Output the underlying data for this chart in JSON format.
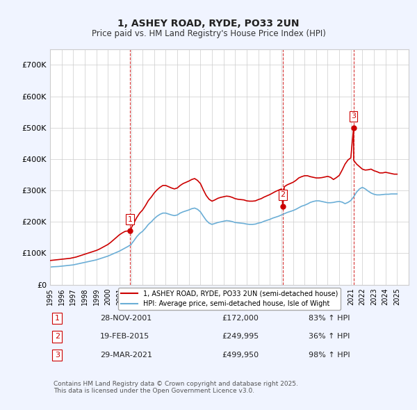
{
  "title": "1, ASHEY ROAD, RYDE, PO33 2UN",
  "subtitle": "Price paid vs. HM Land Registry's House Price Index (HPI)",
  "bg_color": "#f0f4ff",
  "plot_bg_color": "#ffffff",
  "grid_color": "#cccccc",
  "hpi_color": "#6baed6",
  "sale_color": "#cc0000",
  "vline_color": "#cc0000",
  "vline_style": "--",
  "sales": [
    {
      "date_num": 2001.91,
      "price": 172000,
      "label": "1"
    },
    {
      "date_num": 2015.13,
      "price": 249995,
      "label": "2"
    },
    {
      "date_num": 2021.24,
      "price": 499950,
      "label": "3"
    }
  ],
  "xlim": [
    1995,
    2026
  ],
  "ylim": [
    0,
    750000
  ],
  "yticks": [
    0,
    100000,
    200000,
    300000,
    400000,
    500000,
    600000,
    700000
  ],
  "ytick_labels": [
    "£0",
    "£100K",
    "£200K",
    "£300K",
    "£400K",
    "£500K",
    "£600K",
    "£700K"
  ],
  "legend_sale_label": "1, ASHEY ROAD, RYDE, PO33 2UN (semi-detached house)",
  "legend_hpi_label": "HPI: Average price, semi-detached house, Isle of Wight",
  "footer_lines": [
    "Contains HM Land Registry data © Crown copyright and database right 2025.",
    "This data is licensed under the Open Government Licence v3.0."
  ],
  "table_rows": [
    {
      "num": "1",
      "date": "28-NOV-2001",
      "price": "£172,000",
      "change": "83% ↑ HPI"
    },
    {
      "num": "2",
      "date": "19-FEB-2015",
      "price": "£249,995",
      "change": "36% ↑ HPI"
    },
    {
      "num": "3",
      "date": "29-MAR-2021",
      "price": "£499,950",
      "change": "98% ↑ HPI"
    }
  ],
  "hpi_data_x": [
    1995.0,
    1995.25,
    1995.5,
    1995.75,
    1996.0,
    1996.25,
    1996.5,
    1996.75,
    1997.0,
    1997.25,
    1997.5,
    1997.75,
    1998.0,
    1998.25,
    1998.5,
    1998.75,
    1999.0,
    1999.25,
    1999.5,
    1999.75,
    2000.0,
    2000.25,
    2000.5,
    2000.75,
    2001.0,
    2001.25,
    2001.5,
    2001.75,
    2002.0,
    2002.25,
    2002.5,
    2002.75,
    2003.0,
    2003.25,
    2003.5,
    2003.75,
    2004.0,
    2004.25,
    2004.5,
    2004.75,
    2005.0,
    2005.25,
    2005.5,
    2005.75,
    2006.0,
    2006.25,
    2006.5,
    2006.75,
    2007.0,
    2007.25,
    2007.5,
    2007.75,
    2008.0,
    2008.25,
    2008.5,
    2008.75,
    2009.0,
    2009.25,
    2009.5,
    2009.75,
    2010.0,
    2010.25,
    2010.5,
    2010.75,
    2011.0,
    2011.25,
    2011.5,
    2011.75,
    2012.0,
    2012.25,
    2012.5,
    2012.75,
    2013.0,
    2013.25,
    2013.5,
    2013.75,
    2014.0,
    2014.25,
    2014.5,
    2014.75,
    2015.0,
    2015.25,
    2015.5,
    2015.75,
    2016.0,
    2016.25,
    2016.5,
    2016.75,
    2017.0,
    2017.25,
    2017.5,
    2017.75,
    2018.0,
    2018.25,
    2018.5,
    2018.75,
    2019.0,
    2019.25,
    2019.5,
    2019.75,
    2020.0,
    2020.25,
    2020.5,
    2020.75,
    2021.0,
    2021.25,
    2021.5,
    2021.75,
    2022.0,
    2022.25,
    2022.5,
    2022.75,
    2023.0,
    2023.25,
    2023.5,
    2023.75,
    2024.0,
    2024.25,
    2024.5,
    2024.75,
    2025.0
  ],
  "hpi_data_y": [
    56000,
    57000,
    57500,
    58000,
    59000,
    60000,
    61000,
    62000,
    63000,
    65000,
    67000,
    69000,
    71000,
    73000,
    75000,
    77000,
    79000,
    82000,
    85000,
    88000,
    91000,
    95000,
    99000,
    103000,
    107000,
    112000,
    117000,
    122000,
    128000,
    140000,
    153000,
    163000,
    170000,
    180000,
    192000,
    200000,
    210000,
    218000,
    224000,
    228000,
    228000,
    225000,
    222000,
    220000,
    222000,
    228000,
    232000,
    235000,
    238000,
    242000,
    244000,
    240000,
    232000,
    218000,
    205000,
    196000,
    192000,
    195000,
    198000,
    200000,
    202000,
    204000,
    203000,
    201000,
    198000,
    197000,
    196000,
    195000,
    193000,
    192000,
    192000,
    193000,
    196000,
    198000,
    202000,
    205000,
    208000,
    212000,
    215000,
    218000,
    222000,
    226000,
    230000,
    233000,
    236000,
    240000,
    245000,
    250000,
    253000,
    257000,
    262000,
    265000,
    267000,
    267000,
    265000,
    263000,
    261000,
    261000,
    262000,
    264000,
    265000,
    263000,
    258000,
    262000,
    268000,
    280000,
    295000,
    305000,
    310000,
    305000,
    298000,
    292000,
    288000,
    286000,
    286000,
    287000,
    288000,
    288000,
    289000,
    289000,
    289000
  ],
  "sale_data_x": [
    1995.0,
    1995.25,
    1995.5,
    1995.75,
    1996.0,
    1996.25,
    1996.5,
    1996.75,
    1997.0,
    1997.25,
    1997.5,
    1997.75,
    1998.0,
    1998.25,
    1998.5,
    1998.75,
    1999.0,
    1999.25,
    1999.5,
    1999.75,
    2000.0,
    2000.25,
    2000.5,
    2000.75,
    2001.0,
    2001.25,
    2001.5,
    2001.75,
    2001.91,
    2002.0,
    2002.25,
    2002.5,
    2002.75,
    2003.0,
    2003.25,
    2003.5,
    2003.75,
    2004.0,
    2004.25,
    2004.5,
    2004.75,
    2005.0,
    2005.25,
    2005.5,
    2005.75,
    2006.0,
    2006.25,
    2006.5,
    2006.75,
    2007.0,
    2007.25,
    2007.5,
    2007.75,
    2008.0,
    2008.25,
    2008.5,
    2008.75,
    2009.0,
    2009.25,
    2009.5,
    2009.75,
    2010.0,
    2010.25,
    2010.5,
    2010.75,
    2011.0,
    2011.25,
    2011.5,
    2011.75,
    2012.0,
    2012.25,
    2012.5,
    2012.75,
    2013.0,
    2013.25,
    2013.5,
    2013.75,
    2014.0,
    2014.25,
    2014.5,
    2014.75,
    2015.0,
    2015.13,
    2015.25,
    2015.5,
    2015.75,
    2016.0,
    2016.25,
    2016.5,
    2016.75,
    2017.0,
    2017.25,
    2017.5,
    2017.75,
    2018.0,
    2018.25,
    2018.5,
    2018.75,
    2019.0,
    2019.25,
    2019.5,
    2019.75,
    2020.0,
    2020.25,
    2020.5,
    2020.75,
    2021.0,
    2021.24,
    2021.25,
    2021.5,
    2021.75,
    2022.0,
    2022.25,
    2022.5,
    2022.75,
    2023.0,
    2023.25,
    2023.5,
    2023.75,
    2024.0,
    2024.25,
    2024.5,
    2024.75,
    2025.0
  ],
  "sale_data_y": [
    77000,
    78000,
    79000,
    80000,
    81000,
    82000,
    83000,
    84000,
    86000,
    88000,
    91000,
    94000,
    97000,
    100000,
    103000,
    106000,
    109000,
    113000,
    118000,
    123000,
    128000,
    135000,
    143000,
    151000,
    159000,
    165000,
    170000,
    171000,
    172000,
    179000,
    197000,
    214000,
    228000,
    238000,
    252000,
    268000,
    279000,
    292000,
    302000,
    310000,
    316000,
    316000,
    312000,
    308000,
    305000,
    308000,
    316000,
    322000,
    326000,
    330000,
    335000,
    338000,
    332000,
    322000,
    302000,
    284000,
    272000,
    266000,
    270000,
    275000,
    278000,
    280000,
    282000,
    281000,
    278000,
    274000,
    272000,
    271000,
    270000,
    267000,
    266000,
    266000,
    267000,
    271000,
    274000,
    279000,
    283000,
    287000,
    292000,
    297000,
    301000,
    305000,
    249995,
    312000,
    318000,
    322000,
    326000,
    332000,
    340000,
    344000,
    347000,
    347000,
    344000,
    342000,
    340000,
    340000,
    341000,
    343000,
    345000,
    342000,
    335000,
    341000,
    348000,
    365000,
    384000,
    397000,
    404000,
    499950,
    396000,
    384000,
    376000,
    368000,
    365000,
    366000,
    368000,
    363000,
    360000,
    356000,
    356000,
    358000,
    356000,
    354000,
    352000,
    352000
  ]
}
